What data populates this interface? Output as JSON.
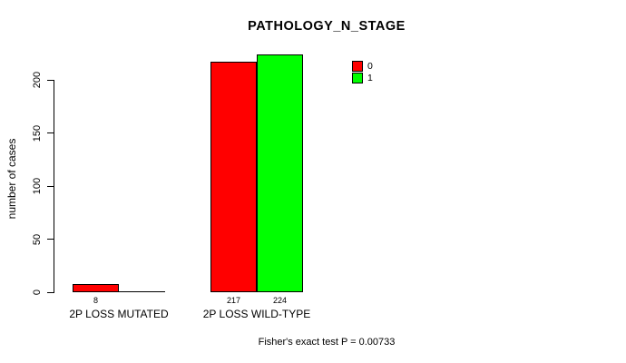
{
  "chart_data": {
    "type": "bar",
    "title": "PATHOLOGY_N_STAGE",
    "ylabel": "number of cases",
    "xlabel": "",
    "categories": [
      "2P LOSS MUTATED",
      "2P LOSS WILD-TYPE"
    ],
    "series": [
      {
        "name": "0",
        "color": "#ff0000",
        "values": [
          8,
          217
        ]
      },
      {
        "name": "1",
        "color": "#00ff00",
        "values": [
          0,
          224
        ]
      }
    ],
    "bar_value_labels": [
      [
        "8",
        ""
      ],
      [
        "217",
        "224"
      ]
    ],
    "yticks": [
      0,
      50,
      100,
      150,
      200
    ],
    "ylim": [
      0,
      224
    ],
    "grid": false,
    "legend": {
      "position": "top-right",
      "items": [
        {
          "label": "0",
          "color": "#ff0000"
        },
        {
          "label": "1",
          "color": "#00ff00"
        }
      ]
    },
    "annotation": "Fisher's exact test P = 0.00733"
  }
}
